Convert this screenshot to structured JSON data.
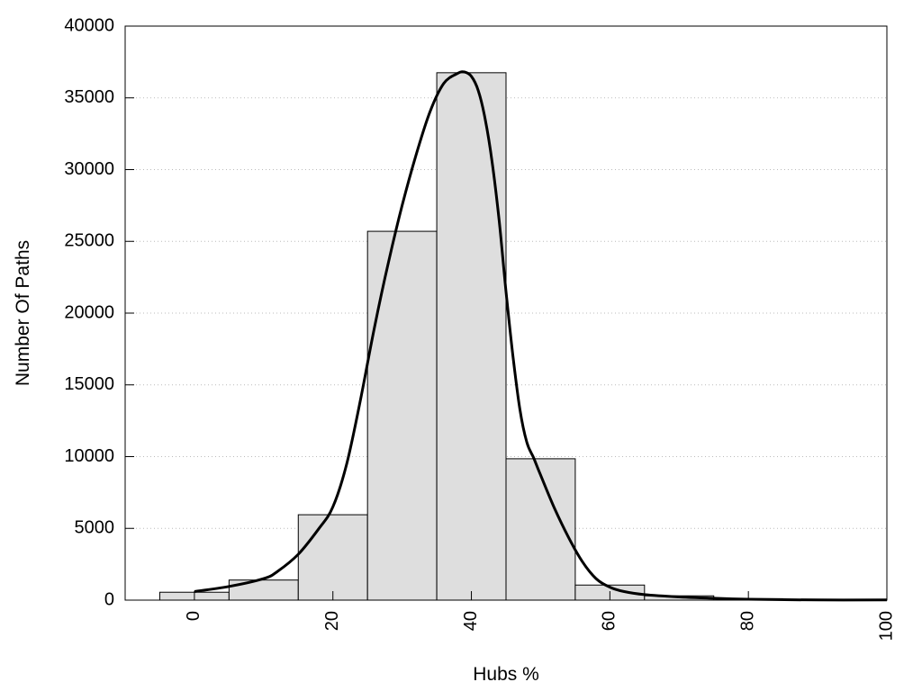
{
  "chart_data": {
    "type": "bar",
    "xlabel": "Hubs %",
    "ylabel": "Number Of Paths",
    "xlim": [
      -10,
      100
    ],
    "ylim": [
      0,
      40000
    ],
    "x_ticks": [
      0,
      20,
      40,
      60,
      80,
      100
    ],
    "y_ticks": [
      0,
      5000,
      10000,
      15000,
      20000,
      25000,
      30000,
      35000,
      40000
    ],
    "grid": "horizontal-dotted",
    "bin_width": 10,
    "bins": [
      {
        "center": 0,
        "value": 550
      },
      {
        "center": 10,
        "value": 1400
      },
      {
        "center": 20,
        "value": 5950
      },
      {
        "center": 30,
        "value": 25700
      },
      {
        "center": 40,
        "value": 36750
      },
      {
        "center": 50,
        "value": 9850
      },
      {
        "center": 60,
        "value": 1050
      },
      {
        "center": 70,
        "value": 300
      },
      {
        "center": 80,
        "value": 100
      },
      {
        "center": 90,
        "value": 40
      },
      {
        "center": 100,
        "value": 20
      }
    ],
    "curve": {
      "x": [
        0,
        5,
        10,
        12,
        15,
        18,
        20,
        22,
        24,
        26,
        28,
        30,
        32,
        34,
        36,
        38,
        39,
        40,
        41,
        42,
        43,
        44,
        45,
        46,
        47,
        48,
        49,
        50,
        52,
        54,
        56,
        58,
        60,
        62,
        65,
        70,
        75,
        80,
        90,
        100
      ],
      "y": [
        600,
        950,
        1500,
        2000,
        3200,
        5000,
        6500,
        9500,
        14000,
        19000,
        23500,
        27500,
        31000,
        34000,
        36000,
        36700,
        36800,
        36500,
        35500,
        33500,
        30500,
        26500,
        21500,
        17000,
        13300,
        11000,
        9900,
        8700,
        6400,
        4400,
        2700,
        1500,
        900,
        600,
        380,
        220,
        130,
        60,
        10,
        15
      ]
    }
  }
}
